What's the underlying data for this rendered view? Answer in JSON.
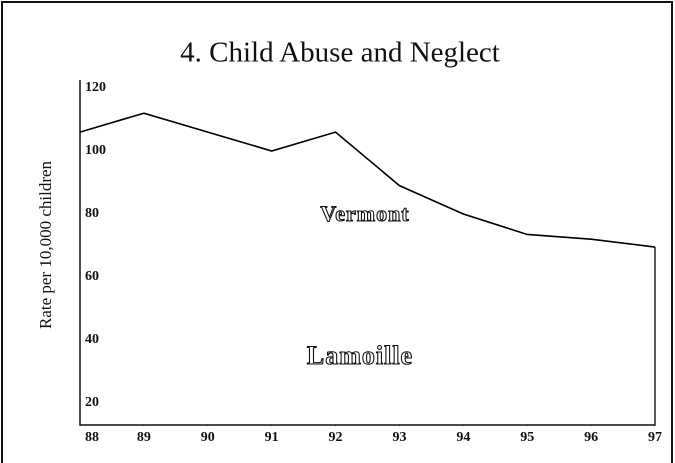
{
  "chart_data": {
    "type": "line",
    "title": "4. Child Abuse and Neglect",
    "y_label": "Rate per 10,000 children",
    "x": [
      88,
      89,
      90,
      91,
      92,
      93,
      94,
      95,
      96,
      97
    ],
    "series": [
      {
        "name": "Vermont",
        "color": "#000000",
        "values": [
          106,
          112,
          106,
          100,
          106,
          89,
          80,
          73.5,
          72,
          69.5
        ]
      }
    ],
    "annotations": [
      "Lamoille"
    ],
    "xlim": [
      88,
      97
    ],
    "xticks": [
      88,
      89,
      90,
      91,
      92,
      93,
      94,
      95,
      96,
      97
    ],
    "ylim": [
      13,
      120
    ],
    "yticks": [
      20,
      40,
      60,
      80,
      100,
      120
    ],
    "grid": false
  }
}
